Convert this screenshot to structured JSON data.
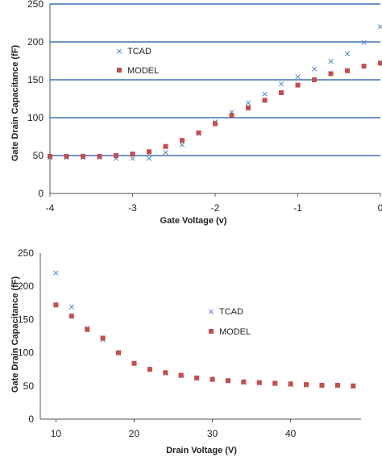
{
  "colors": {
    "tcad": "#4a7ebb",
    "model": "#c0504d",
    "gridline": "#3e71b8",
    "axis": "#555555"
  },
  "chart_data": [
    {
      "type": "scatter",
      "xlabel": "Gate Voltage (v)",
      "ylabel": "Gate Drain Capacitance (fF)",
      "xlim": [
        -4,
        0
      ],
      "ylim": [
        0,
        250
      ],
      "xticks": [
        "-4",
        "-3",
        "-2",
        "-1",
        "0"
      ],
      "yticks": [
        "0",
        "50",
        "100",
        "150",
        "200",
        "250"
      ],
      "grid": "horizontal",
      "legend_position": "upper-left",
      "series": [
        {
          "name": "TCAD",
          "marker": "x",
          "color": "#4a7ebb",
          "x": [
            -4.0,
            -3.8,
            -3.6,
            -3.4,
            -3.2,
            -3.0,
            -2.8,
            -2.6,
            -2.4,
            -2.2,
            -2.0,
            -1.8,
            -1.6,
            -1.4,
            -1.2,
            -1.0,
            -0.8,
            -0.6,
            -0.4,
            -0.2,
            0.0
          ],
          "y": [
            48,
            48,
            48,
            48,
            47,
            47,
            47,
            55,
            65,
            80,
            95,
            108,
            120,
            132,
            145,
            155,
            165,
            175,
            185,
            200,
            221
          ]
        },
        {
          "name": "MODEL",
          "marker": "square",
          "color": "#c0504d",
          "x": [
            -4.0,
            -3.8,
            -3.6,
            -3.4,
            -3.2,
            -3.0,
            -2.8,
            -2.6,
            -2.4,
            -2.2,
            -2.0,
            -1.8,
            -1.6,
            -1.4,
            -1.2,
            -1.0,
            -0.8,
            -0.6,
            -0.4,
            -0.2,
            0.0
          ],
          "y": [
            49,
            49,
            49,
            49,
            50,
            52,
            55,
            62,
            70,
            80,
            92,
            103,
            113,
            123,
            133,
            143,
            150,
            158,
            162,
            168,
            172
          ]
        }
      ]
    },
    {
      "type": "scatter",
      "xlabel": "Drain Voltage (V)",
      "ylabel": "Gate Drain Capacitance (fF)",
      "xlim": [
        8,
        49
      ],
      "ylim": [
        0,
        250
      ],
      "xticks": [
        "10",
        "20",
        "30",
        "40"
      ],
      "yticks": [
        "0",
        "50",
        "100",
        "150",
        "200",
        "250"
      ],
      "grid": "none",
      "legend_position": "center-right",
      "series": [
        {
          "name": "TCAD",
          "marker": "x",
          "color": "#4a7ebb",
          "x": [
            10,
            12,
            14,
            16,
            18,
            20,
            22,
            24,
            26,
            28,
            30,
            32,
            34,
            36,
            38,
            40,
            42,
            44,
            46,
            48
          ],
          "y": [
            221,
            170,
            138,
            120,
            100,
            85,
            75,
            70,
            66,
            62,
            60,
            58,
            56,
            55,
            54,
            53,
            52,
            51,
            51,
            50
          ]
        },
        {
          "name": "MODEL",
          "marker": "square",
          "color": "#c0504d",
          "x": [
            10,
            12,
            14,
            16,
            18,
            20,
            22,
            24,
            26,
            28,
            30,
            32,
            34,
            36,
            38,
            40,
            42,
            44,
            46,
            48
          ],
          "y": [
            172,
            155,
            135,
            122,
            100,
            84,
            75,
            70,
            66,
            62,
            60,
            58,
            56,
            55,
            54,
            53,
            52,
            51,
            51,
            50
          ]
        }
      ]
    }
  ]
}
